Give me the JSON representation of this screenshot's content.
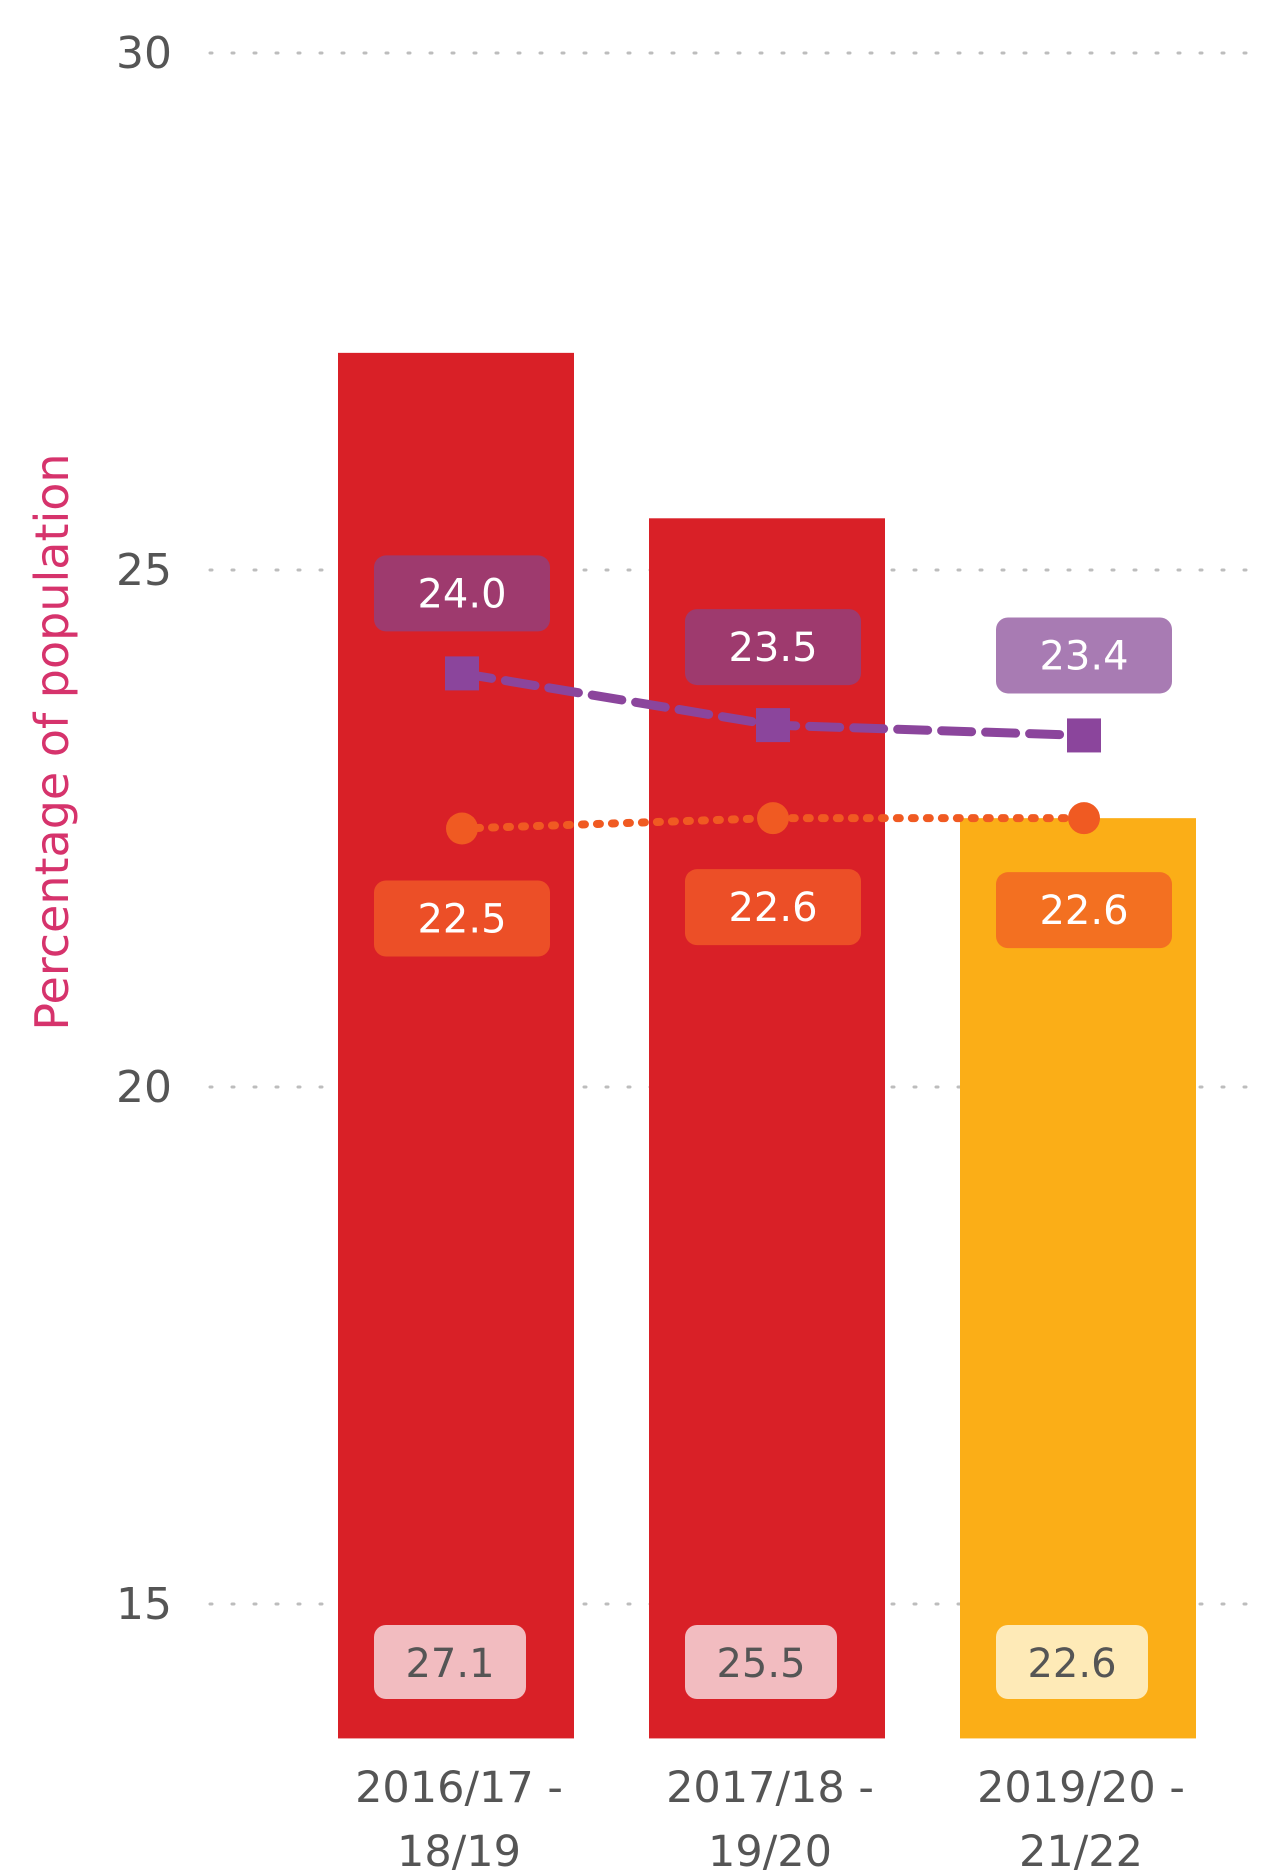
{
  "chart_data": {
    "type": "bar",
    "ylabel": "Percentage of population",
    "ylim": [
      13.7,
      30
    ],
    "yticks": [
      15,
      20,
      25,
      30
    ],
    "grid": true,
    "categories": [
      {
        "line1": "2016/17 -",
        "line2": "18/19"
      },
      {
        "line1": "2017/18 -",
        "line2": "19/20"
      },
      {
        "line1": "2019/20 -",
        "line2": "21/22"
      }
    ],
    "bars": {
      "values": [
        27.1,
        25.5,
        22.6
      ],
      "labels": [
        "27.1",
        "25.5",
        "22.6"
      ],
      "colors": [
        "#d92027",
        "#d92027",
        "#fbae17"
      ],
      "label_bg": [
        "#f2bcc0",
        "#f2bcc0",
        "#feeab7"
      ],
      "label_color": "#555555"
    },
    "series": [
      {
        "values": [
          24.0,
          23.5,
          23.4
        ],
        "labels": [
          "24.0",
          "23.5",
          "23.4"
        ],
        "color": "#8b459c",
        "marker": "square",
        "line_style": "dashed",
        "label_bg": [
          "#9e3a6e",
          "#9e3a6e",
          "#a87bb3"
        ]
      },
      {
        "values": [
          22.5,
          22.6,
          22.6
        ],
        "labels": [
          "22.5",
          "22.6",
          "22.6"
        ],
        "color": "#f05a22",
        "marker": "circle",
        "line_style": "dotted",
        "label_bg": [
          "#ec4f27",
          "#ec4f27",
          "#f37021"
        ]
      }
    ]
  }
}
